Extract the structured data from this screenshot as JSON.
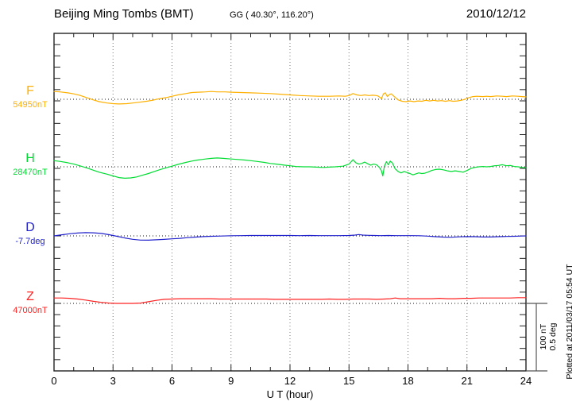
{
  "header": {
    "station_title": "Beijing Ming Tombs (BMT)",
    "coordinates": "GG ( 40.30°, 116.20°)",
    "date": "2010/12/12"
  },
  "footer": {
    "x_axis_label": "U T (hour)"
  },
  "side_note": {
    "plotted_at": "Plotted at 2011/03/17 05:54 UT"
  },
  "chart_data": {
    "type": "line",
    "title": "Beijing Ming Tombs (BMT) magnetogram 2010/12/12",
    "xlabel": "U T (hour)",
    "x_range": [
      0,
      24
    ],
    "x_ticks": [
      0,
      3,
      6,
      9,
      12,
      15,
      18,
      21,
      24
    ],
    "grid": "dotted vertical line every 3 hours; dotted horizontal baseline per channel",
    "legend_position": "channel labels on left margin",
    "scale_bar": {
      "nT": 100,
      "deg": 0.5,
      "label_lines": [
        "100 nT",
        "0.5 deg"
      ]
    },
    "offsets_relative_to_baseline": true,
    "channels": [
      {
        "id": "F",
        "label": "F",
        "baseline_label": "54950nT",
        "baseline_value": 54950,
        "unit": "nT",
        "color": "#FFB000",
        "series": [
          [
            0,
            11.5
          ],
          [
            0.3,
            11
          ],
          [
            0.7,
            9.5
          ],
          [
            1,
            8
          ],
          [
            1.3,
            6
          ],
          [
            1.7,
            2
          ],
          [
            2,
            -1
          ],
          [
            2.3,
            -3.5
          ],
          [
            2.7,
            -5.5
          ],
          [
            3,
            -6.5
          ],
          [
            3.3,
            -7
          ],
          [
            3.7,
            -6.5
          ],
          [
            4,
            -5.5
          ],
          [
            4.3,
            -4.5
          ],
          [
            4.7,
            -3
          ],
          [
            5,
            -1.5
          ],
          [
            5.3,
            0.5
          ],
          [
            5.7,
            2.5
          ],
          [
            6,
            4.5
          ],
          [
            6.3,
            6.5
          ],
          [
            6.7,
            8.5
          ],
          [
            7,
            10
          ],
          [
            7.3,
            10.5
          ],
          [
            7.7,
            11
          ],
          [
            8,
            11.5
          ],
          [
            8.3,
            11
          ],
          [
            8.7,
            11
          ],
          [
            9,
            10.5
          ],
          [
            9.5,
            10
          ],
          [
            10,
            9.5
          ],
          [
            10.5,
            9
          ],
          [
            11,
            8.5
          ],
          [
            11.5,
            7.5
          ],
          [
            12,
            6.5
          ],
          [
            12.5,
            5.5
          ],
          [
            13,
            5
          ],
          [
            13.5,
            4.5
          ],
          [
            14,
            4.5
          ],
          [
            14.5,
            5
          ],
          [
            14.8,
            4.5
          ],
          [
            15,
            5.5
          ],
          [
            15.2,
            8.5
          ],
          [
            15.4,
            6.5
          ],
          [
            15.6,
            5.5
          ],
          [
            15.8,
            6.5
          ],
          [
            16,
            5.5
          ],
          [
            16.2,
            6
          ],
          [
            16.4,
            5.5
          ],
          [
            16.5,
            4.5
          ],
          [
            16.65,
            1
          ],
          [
            16.75,
            8
          ],
          [
            16.85,
            9.5
          ],
          [
            16.95,
            4
          ],
          [
            17.05,
            7
          ],
          [
            17.15,
            8
          ],
          [
            17.3,
            4
          ],
          [
            17.5,
            -1
          ],
          [
            17.7,
            -3
          ],
          [
            17.9,
            -3.5
          ],
          [
            18.1,
            -2.5
          ],
          [
            18.3,
            -3.5
          ],
          [
            18.5,
            -2.5
          ],
          [
            18.7,
            -3
          ],
          [
            18.9,
            -1.5
          ],
          [
            19.1,
            -2.5
          ],
          [
            19.3,
            -1.5
          ],
          [
            19.5,
            -2.5
          ],
          [
            19.7,
            -2
          ],
          [
            19.9,
            -3
          ],
          [
            20.1,
            -2
          ],
          [
            20.3,
            -3
          ],
          [
            20.5,
            -2.5
          ],
          [
            20.7,
            -1.5
          ],
          [
            20.9,
            0
          ],
          [
            21.1,
            2.5
          ],
          [
            21.3,
            4
          ],
          [
            21.5,
            4.5
          ],
          [
            21.8,
            4
          ],
          [
            22,
            4.5
          ],
          [
            22.2,
            4
          ],
          [
            22.5,
            5
          ],
          [
            22.8,
            4.5
          ],
          [
            23,
            4
          ],
          [
            23.3,
            5
          ],
          [
            23.6,
            4.5
          ],
          [
            23.8,
            4
          ],
          [
            24,
            3.5
          ]
        ]
      },
      {
        "id": "H",
        "label": "H",
        "baseline_label": "28470nT",
        "baseline_value": 28470,
        "unit": "nT",
        "color": "#00DC32",
        "series": [
          [
            0,
            9
          ],
          [
            0.3,
            8
          ],
          [
            0.7,
            6
          ],
          [
            1,
            4
          ],
          [
            1.3,
            1.5
          ],
          [
            1.7,
            -2
          ],
          [
            2,
            -5
          ],
          [
            2.3,
            -8
          ],
          [
            2.7,
            -11
          ],
          [
            3,
            -13.5
          ],
          [
            3.3,
            -16
          ],
          [
            3.6,
            -17
          ],
          [
            3.9,
            -16.5
          ],
          [
            4.2,
            -15
          ],
          [
            4.5,
            -12.5
          ],
          [
            4.8,
            -10
          ],
          [
            5.1,
            -7
          ],
          [
            5.4,
            -4
          ],
          [
            5.7,
            -1.5
          ],
          [
            6,
            1
          ],
          [
            6.3,
            3.5
          ],
          [
            6.7,
            6.5
          ],
          [
            7,
            8.5
          ],
          [
            7.3,
            10
          ],
          [
            7.7,
            11.5
          ],
          [
            8,
            12.5
          ],
          [
            8.3,
            13
          ],
          [
            8.6,
            12.5
          ],
          [
            9,
            11.5
          ],
          [
            9.3,
            11
          ],
          [
            9.7,
            10
          ],
          [
            10,
            9
          ],
          [
            10.3,
            8
          ],
          [
            10.7,
            6.5
          ],
          [
            11,
            5
          ],
          [
            11.3,
            4
          ],
          [
            11.7,
            2.5
          ],
          [
            12,
            1.5
          ],
          [
            12.3,
            0.5
          ],
          [
            12.7,
            0
          ],
          [
            13,
            0
          ],
          [
            13.3,
            -0.5
          ],
          [
            13.7,
            -1
          ],
          [
            14,
            -0.5
          ],
          [
            14.3,
            0
          ],
          [
            14.7,
            1
          ],
          [
            15,
            4
          ],
          [
            15.2,
            10.5
          ],
          [
            15.35,
            6
          ],
          [
            15.5,
            4
          ],
          [
            15.65,
            5
          ],
          [
            15.8,
            7
          ],
          [
            15.95,
            4.5
          ],
          [
            16.1,
            2.5
          ],
          [
            16.25,
            4
          ],
          [
            16.4,
            3
          ],
          [
            16.55,
            -1
          ],
          [
            16.65,
            -6
          ],
          [
            16.72,
            -13.5
          ],
          [
            16.8,
            1
          ],
          [
            16.9,
            7.5
          ],
          [
            17,
            3
          ],
          [
            17.1,
            8.5
          ],
          [
            17.2,
            6
          ],
          [
            17.35,
            -3
          ],
          [
            17.5,
            -7
          ],
          [
            17.65,
            -9
          ],
          [
            17.8,
            -7
          ],
          [
            17.95,
            -8.5
          ],
          [
            18.1,
            -10
          ],
          [
            18.25,
            -12
          ],
          [
            18.4,
            -10.5
          ],
          [
            18.55,
            -9
          ],
          [
            18.7,
            -10
          ],
          [
            18.85,
            -9.5
          ],
          [
            19,
            -8
          ],
          [
            19.2,
            -5.5
          ],
          [
            19.4,
            -4
          ],
          [
            19.6,
            -3.5
          ],
          [
            19.8,
            -4.5
          ],
          [
            20,
            -6
          ],
          [
            20.2,
            -7
          ],
          [
            20.4,
            -6
          ],
          [
            20.6,
            -7
          ],
          [
            20.8,
            -8
          ],
          [
            21,
            -5.5
          ],
          [
            21.2,
            -2.5
          ],
          [
            21.4,
            -1
          ],
          [
            21.6,
            0
          ],
          [
            21.8,
            0.5
          ],
          [
            22,
            0
          ],
          [
            22.2,
            0.5
          ],
          [
            22.4,
            1.5
          ],
          [
            22.6,
            2
          ],
          [
            22.8,
            3
          ],
          [
            23,
            1.5
          ],
          [
            23.2,
            2
          ],
          [
            23.4,
            0.5
          ],
          [
            23.6,
            0
          ],
          [
            23.8,
            -1
          ],
          [
            24,
            -1.5
          ]
        ]
      },
      {
        "id": "D",
        "label": "D",
        "baseline_label": "-7.7deg",
        "baseline_value": -7.7,
        "unit": "deg",
        "color": "#2222CC",
        "series": [
          [
            0,
            0
          ],
          [
            0.4,
            0.008
          ],
          [
            0.8,
            0.016
          ],
          [
            1.2,
            0.021
          ],
          [
            1.6,
            0.024
          ],
          [
            2,
            0.023
          ],
          [
            2.4,
            0.018
          ],
          [
            2.8,
            0.009
          ],
          [
            3.2,
            -0.003
          ],
          [
            3.6,
            -0.015
          ],
          [
            4,
            -0.025
          ],
          [
            4.4,
            -0.031
          ],
          [
            4.8,
            -0.032
          ],
          [
            5.2,
            -0.029
          ],
          [
            5.6,
            -0.026
          ],
          [
            6,
            -0.022
          ],
          [
            6.4,
            -0.018
          ],
          [
            6.8,
            -0.013
          ],
          [
            7.2,
            -0.009
          ],
          [
            7.6,
            -0.005
          ],
          [
            8,
            -0.003
          ],
          [
            8.5,
            -0.001
          ],
          [
            9,
            0.001
          ],
          [
            9.5,
            0.002
          ],
          [
            10,
            0.003
          ],
          [
            10.5,
            0.003
          ],
          [
            11,
            0.003
          ],
          [
            11.5,
            0.003
          ],
          [
            12,
            0.003
          ],
          [
            12.5,
            0.002
          ],
          [
            13,
            0.003
          ],
          [
            13.5,
            0.002
          ],
          [
            14,
            0.002
          ],
          [
            14.5,
            0.002
          ],
          [
            15,
            0.003
          ],
          [
            15.3,
            0.006
          ],
          [
            15.5,
            0.01
          ],
          [
            15.7,
            0.006
          ],
          [
            16,
            0.004
          ],
          [
            16.3,
            0.003
          ],
          [
            16.6,
            0.002
          ],
          [
            17,
            0.003
          ],
          [
            17.4,
            0.002
          ],
          [
            17.8,
            0.002
          ],
          [
            18.2,
            0.002
          ],
          [
            18.6,
            0.001
          ],
          [
            19,
            -0.002
          ],
          [
            19.4,
            -0.006
          ],
          [
            19.8,
            -0.009
          ],
          [
            20.2,
            -0.01
          ],
          [
            20.6,
            -0.007
          ],
          [
            21,
            -0.005
          ],
          [
            21.4,
            -0.006
          ],
          [
            21.8,
            -0.008
          ],
          [
            22.2,
            -0.008
          ],
          [
            22.6,
            -0.006
          ],
          [
            23,
            -0.004
          ],
          [
            23.4,
            -0.003
          ],
          [
            23.8,
            -0.001
          ],
          [
            24,
            0
          ]
        ]
      },
      {
        "id": "Z",
        "label": "Z",
        "baseline_label": "47000nT",
        "baseline_value": 47000,
        "unit": "nT",
        "color": "#FF2222",
        "series": [
          [
            0,
            8
          ],
          [
            0.4,
            8
          ],
          [
            0.8,
            7.5
          ],
          [
            1.2,
            6.5
          ],
          [
            1.6,
            5
          ],
          [
            2,
            3
          ],
          [
            2.4,
            1.5
          ],
          [
            2.8,
            0.5
          ],
          [
            3.2,
            0
          ],
          [
            3.6,
            0
          ],
          [
            4,
            0
          ],
          [
            4.4,
            0.5
          ],
          [
            4.8,
            2.5
          ],
          [
            5.2,
            4.5
          ],
          [
            5.6,
            6
          ],
          [
            6,
            6.5
          ],
          [
            6.4,
            7
          ],
          [
            6.8,
            7
          ],
          [
            7.2,
            7
          ],
          [
            7.6,
            7
          ],
          [
            8,
            7
          ],
          [
            8.4,
            6.5
          ],
          [
            8.8,
            6.5
          ],
          [
            9.2,
            6.5
          ],
          [
            9.6,
            6.5
          ],
          [
            10,
            6.5
          ],
          [
            10.4,
            6.5
          ],
          [
            10.8,
            6.5
          ],
          [
            11.2,
            6
          ],
          [
            11.6,
            6
          ],
          [
            12,
            6
          ],
          [
            12.4,
            6
          ],
          [
            12.8,
            6
          ],
          [
            13.2,
            6
          ],
          [
            13.6,
            6
          ],
          [
            14,
            6.5
          ],
          [
            14.4,
            6
          ],
          [
            14.8,
            6
          ],
          [
            15.2,
            6.5
          ],
          [
            15.6,
            6.5
          ],
          [
            16,
            6.5
          ],
          [
            16.4,
            6
          ],
          [
            16.8,
            6.5
          ],
          [
            17.1,
            7
          ],
          [
            17.35,
            8
          ],
          [
            17.6,
            7
          ],
          [
            18,
            7
          ],
          [
            18.4,
            7
          ],
          [
            18.8,
            7
          ],
          [
            19.2,
            7
          ],
          [
            19.6,
            7.5
          ],
          [
            20,
            7
          ],
          [
            20.4,
            7
          ],
          [
            20.8,
            7.5
          ],
          [
            21.2,
            7.5
          ],
          [
            21.6,
            8
          ],
          [
            22,
            8
          ],
          [
            22.4,
            8
          ],
          [
            22.8,
            8
          ],
          [
            23.2,
            8
          ],
          [
            23.6,
            8.5
          ],
          [
            24,
            8.5
          ]
        ]
      }
    ]
  }
}
